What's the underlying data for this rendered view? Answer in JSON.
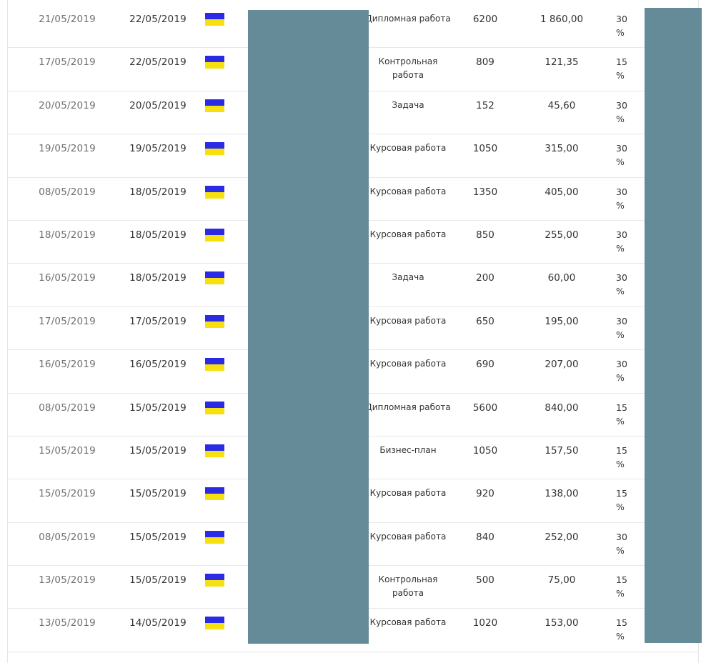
{
  "table": {
    "rows": [
      {
        "date_created": "21/05/2019",
        "date_due": "22/05/2019",
        "work_type": "Дипломная работа",
        "amount": "6200",
        "fee": "1 860,00",
        "percent_num": "30",
        "percent_sign": "%"
      },
      {
        "date_created": "17/05/2019",
        "date_due": "22/05/2019",
        "work_type": "Контрольная работа",
        "amount": "809",
        "fee": "121,35",
        "percent_num": "15",
        "percent_sign": "%"
      },
      {
        "date_created": "20/05/2019",
        "date_due": "20/05/2019",
        "work_type": "Задача",
        "amount": "152",
        "fee": "45,60",
        "percent_num": "30",
        "percent_sign": "%"
      },
      {
        "date_created": "19/05/2019",
        "date_due": "19/05/2019",
        "work_type": "Курсовая работа",
        "amount": "1050",
        "fee": "315,00",
        "percent_num": "30",
        "percent_sign": "%"
      },
      {
        "date_created": "08/05/2019",
        "date_due": "18/05/2019",
        "work_type": "Курсовая работа",
        "amount": "1350",
        "fee": "405,00",
        "percent_num": "30",
        "percent_sign": "%"
      },
      {
        "date_created": "18/05/2019",
        "date_due": "18/05/2019",
        "work_type": "Курсовая работа",
        "amount": "850",
        "fee": "255,00",
        "percent_num": "30",
        "percent_sign": "%"
      },
      {
        "date_created": "16/05/2019",
        "date_due": "18/05/2019",
        "work_type": "Задача",
        "amount": "200",
        "fee": "60,00",
        "percent_num": "30",
        "percent_sign": "%"
      },
      {
        "date_created": "17/05/2019",
        "date_due": "17/05/2019",
        "work_type": "Курсовая работа",
        "amount": "650",
        "fee": "195,00",
        "percent_num": "30",
        "percent_sign": "%"
      },
      {
        "date_created": "16/05/2019",
        "date_due": "16/05/2019",
        "work_type": "Курсовая работа",
        "amount": "690",
        "fee": "207,00",
        "percent_num": "30",
        "percent_sign": "%"
      },
      {
        "date_created": "08/05/2019",
        "date_due": "15/05/2019",
        "work_type": "Дипломная работа",
        "amount": "5600",
        "fee": "840,00",
        "percent_num": "15",
        "percent_sign": "%"
      },
      {
        "date_created": "15/05/2019",
        "date_due": "15/05/2019",
        "work_type": "Бизнес-план",
        "amount": "1050",
        "fee": "157,50",
        "percent_num": "15",
        "percent_sign": "%"
      },
      {
        "date_created": "15/05/2019",
        "date_due": "15/05/2019",
        "work_type": "Курсовая работа",
        "amount": "920",
        "fee": "138,00",
        "percent_num": "15",
        "percent_sign": "%"
      },
      {
        "date_created": "08/05/2019",
        "date_due": "15/05/2019",
        "work_type": "Курсовая работа",
        "amount": "840",
        "fee": "252,00",
        "percent_num": "30",
        "percent_sign": "%"
      },
      {
        "date_created": "13/05/2019",
        "date_due": "15/05/2019",
        "work_type": "Контрольная работа",
        "amount": "500",
        "fee": "75,00",
        "percent_num": "15",
        "percent_sign": "%"
      },
      {
        "date_created": "13/05/2019",
        "date_due": "14/05/2019",
        "work_type": "Курсовая работа",
        "amount": "1020",
        "fee": "153,00",
        "percent_num": "15",
        "percent_sign": "%"
      }
    ]
  },
  "colors": {
    "flag_blue": "#2b2be6",
    "flag_yellow": "#f7e010",
    "redaction": "#648b97"
  }
}
